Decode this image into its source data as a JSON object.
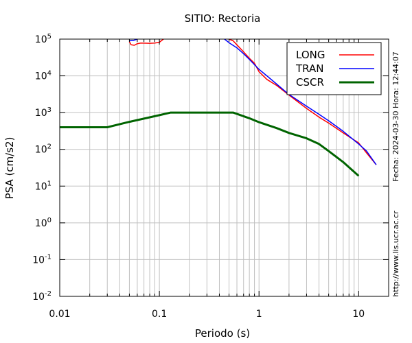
{
  "chart_data": {
    "type": "line",
    "title": "SITIO: Rectoria",
    "xlabel": "Periodo (s)",
    "ylabel": "PSA (cm/s2)",
    "x_scale": "log",
    "y_scale": "log",
    "xlim": [
      0.01,
      20
    ],
    "ylim": [
      0.01,
      100000
    ],
    "x_ticks": [
      {
        "value": 0.01,
        "label": "0.01"
      },
      {
        "value": 0.1,
        "label": "0.1"
      },
      {
        "value": 1,
        "label": "1"
      },
      {
        "value": 10,
        "label": "10"
      }
    ],
    "y_ticks": [
      {
        "value": 0.01,
        "base": "10",
        "exp": "-2"
      },
      {
        "value": 0.1,
        "base": "10",
        "exp": "-1"
      },
      {
        "value": 1,
        "base": "10",
        "exp": "0"
      },
      {
        "value": 10,
        "base": "10",
        "exp": "1"
      },
      {
        "value": 100,
        "base": "10",
        "exp": "2"
      },
      {
        "value": 1000,
        "base": "10",
        "exp": "3"
      },
      {
        "value": 10000,
        "base": "10",
        "exp": "4"
      },
      {
        "value": 100000,
        "base": "10",
        "exp": "5"
      }
    ],
    "grid": true,
    "legend_position": "top-right",
    "series": [
      {
        "name": "LONG",
        "color": "#ff0000",
        "width": 1.5,
        "segments": [
          [
            [
              0.05,
              85000
            ],
            [
              0.052,
              70000
            ],
            [
              0.056,
              68000
            ],
            [
              0.06,
              75000
            ],
            [
              0.065,
              78000
            ],
            [
              0.08,
              77000
            ],
            [
              0.09,
              78000
            ],
            [
              0.1,
              82000
            ],
            [
              0.11,
              100000
            ]
          ],
          [
            [
              0.5,
              100000
            ],
            [
              0.55,
              90000
            ],
            [
              0.6,
              70000
            ],
            [
              0.7,
              45000
            ],
            [
              0.8,
              30000
            ],
            [
              0.9,
              22000
            ],
            [
              1.0,
              13000
            ],
            [
              1.2,
              8000
            ],
            [
              1.5,
              5500
            ],
            [
              2.0,
              3000
            ],
            [
              3.0,
              1300
            ],
            [
              4.0,
              750
            ],
            [
              5.0,
              520
            ],
            [
              7.0,
              280
            ],
            [
              10.0,
              150
            ],
            [
              12.0,
              80
            ],
            [
              15.0,
              38
            ]
          ]
        ]
      },
      {
        "name": "TRAN",
        "color": "#0000ff",
        "width": 1.5,
        "segments": [
          [
            [
              0.05,
              90000
            ],
            [
              0.055,
              92000
            ],
            [
              0.06,
              100000
            ]
          ],
          [
            [
              0.45,
              100000
            ],
            [
              0.5,
              80000
            ],
            [
              0.6,
              58000
            ],
            [
              0.7,
              40000
            ],
            [
              0.8,
              28000
            ],
            [
              1.0,
              15000
            ],
            [
              1.2,
              10000
            ],
            [
              1.5,
              6000
            ],
            [
              2.0,
              3100
            ],
            [
              3.0,
              1500
            ],
            [
              4.0,
              900
            ],
            [
              5.0,
              600
            ],
            [
              7.0,
              310
            ],
            [
              10.0,
              140
            ],
            [
              12.0,
              90
            ],
            [
              15.0,
              38
            ]
          ]
        ]
      },
      {
        "name": "CSCR",
        "color": "#006400",
        "width": 3,
        "segments": [
          [
            [
              0.01,
              400
            ],
            [
              0.03,
              400
            ],
            [
              0.05,
              560
            ],
            [
              0.1,
              850
            ],
            [
              0.13,
              1000
            ],
            [
              0.55,
              1000
            ],
            [
              0.8,
              700
            ],
            [
              1.0,
              550
            ],
            [
              1.5,
              380
            ],
            [
              2.0,
              280
            ],
            [
              3.0,
              200
            ],
            [
              4.0,
              140
            ],
            [
              5.0,
              90
            ],
            [
              7.0,
              45
            ],
            [
              10.0,
              19
            ]
          ]
        ]
      }
    ]
  },
  "side_text": {
    "date": "Fecha: 2024-03-30  Hora: 12:44:07",
    "url": "http://www.lis.ucr.ac.cr"
  }
}
